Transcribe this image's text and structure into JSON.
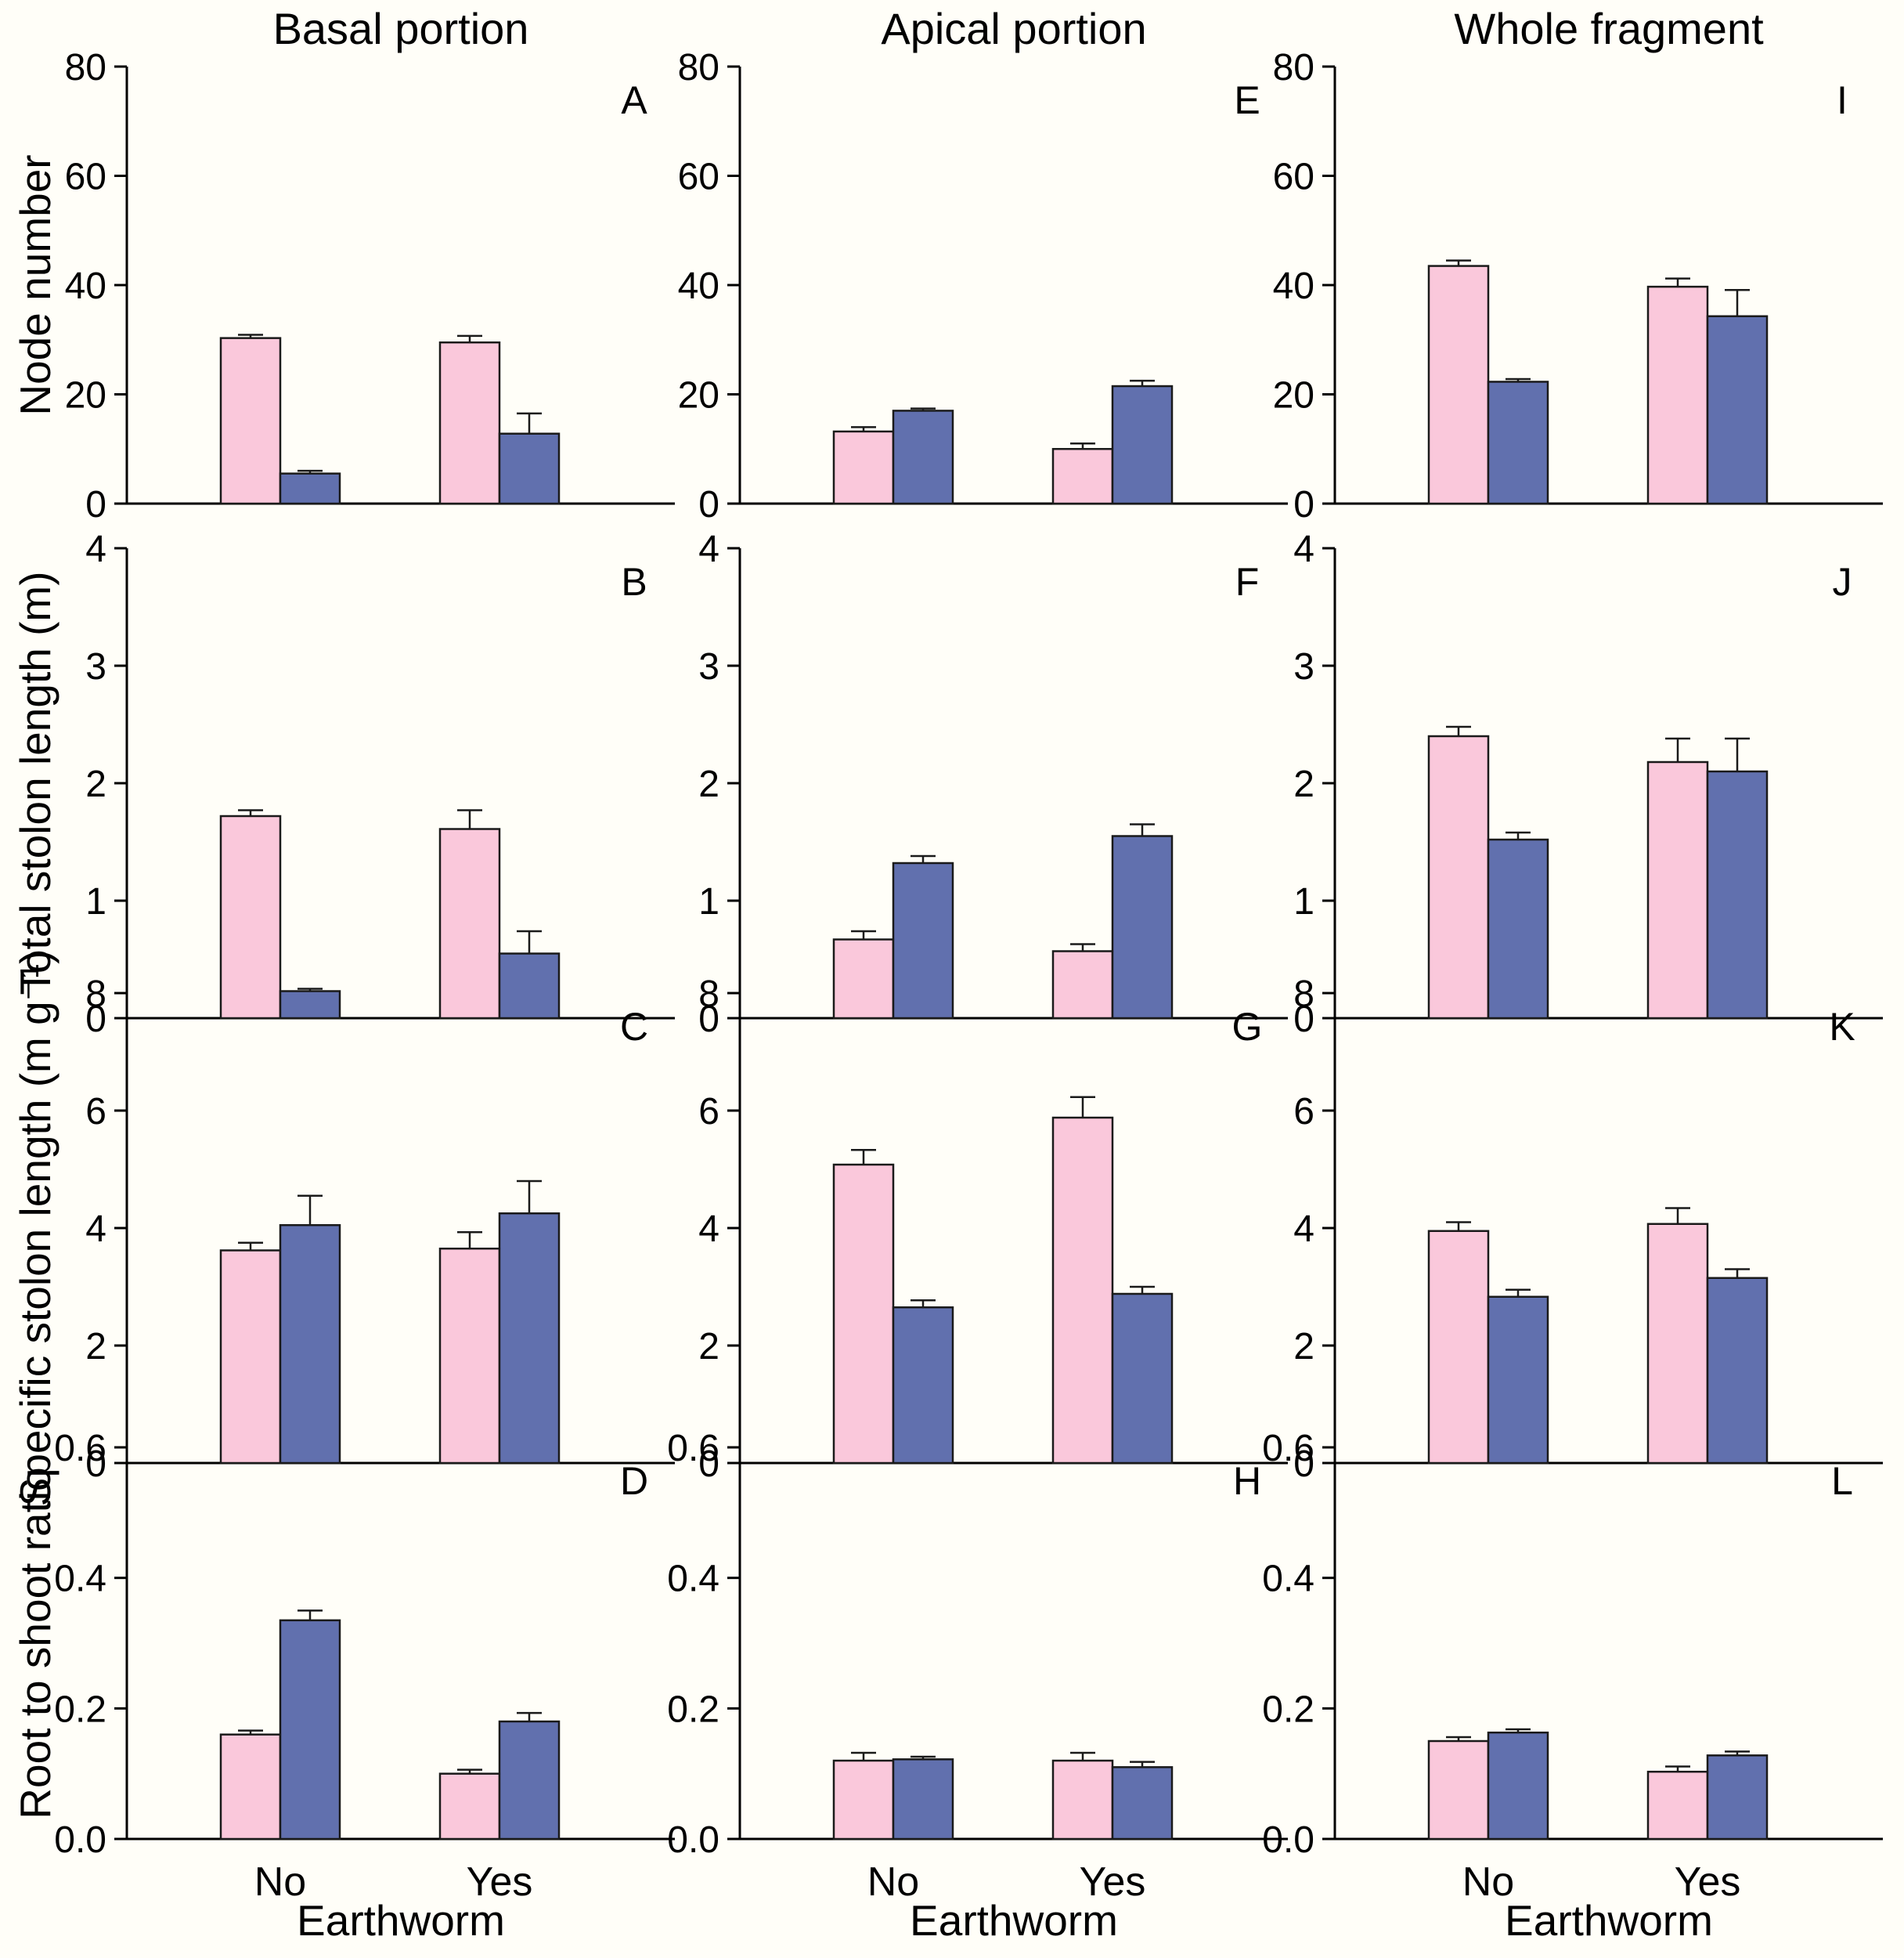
{
  "figure": {
    "background": "#fffef8",
    "column_titles": [
      "Basal portion",
      "Apical portion",
      "Whole fragment"
    ],
    "row_axis_titles": [
      "Node number",
      "Total stolon length (m)",
      "Specific stolon length (m g⁻¹)",
      "Root to shoot ratio"
    ],
    "x_axis_title": "Earthworm",
    "x_categories": [
      "No",
      "Yes"
    ],
    "series": [
      {
        "name": "pink",
        "color": "#FAC8DB"
      },
      {
        "name": "blue",
        "color": "#6170AE"
      }
    ],
    "axis_color": "#000000",
    "bar_outline_color": "#1a1a1a"
  },
  "chart_data": [
    {
      "type": "bar",
      "label": "A",
      "grid": {
        "row": 0,
        "col": 0
      },
      "column": "Basal portion",
      "ylabel": "Node number",
      "ylim": [
        0,
        80
      ],
      "yticks": [
        "0",
        "20",
        "40",
        "60",
        "80"
      ],
      "categories": [
        "No",
        "Yes"
      ],
      "legend": false,
      "series": [
        {
          "name": "pink",
          "values": [
            30.3,
            29.5
          ],
          "errors": [
            0.6,
            1.2
          ]
        },
        {
          "name": "blue",
          "values": [
            5.5,
            12.8
          ],
          "errors": [
            0.5,
            3.7
          ]
        }
      ]
    },
    {
      "type": "bar",
      "label": "E",
      "grid": {
        "row": 0,
        "col": 1
      },
      "column": "Apical portion",
      "ylabel": "Node number",
      "ylim": [
        0,
        80
      ],
      "yticks": [
        "0",
        "20",
        "40",
        "60",
        "80"
      ],
      "categories": [
        "No",
        "Yes"
      ],
      "legend": false,
      "series": [
        {
          "name": "pink",
          "values": [
            13.2,
            10.0
          ],
          "errors": [
            0.8,
            1.0
          ]
        },
        {
          "name": "blue",
          "values": [
            17.0,
            21.5
          ],
          "errors": [
            0.4,
            1.0
          ]
        }
      ]
    },
    {
      "type": "bar",
      "label": "I",
      "grid": {
        "row": 0,
        "col": 2
      },
      "column": "Whole fragment",
      "ylabel": "Node number",
      "ylim": [
        0,
        80
      ],
      "yticks": [
        "0",
        "20",
        "40",
        "60",
        "80"
      ],
      "categories": [
        "No",
        "Yes"
      ],
      "legend": false,
      "series": [
        {
          "name": "pink",
          "values": [
            43.5,
            39.7
          ],
          "errors": [
            1.0,
            1.5
          ]
        },
        {
          "name": "blue",
          "values": [
            22.3,
            34.3
          ],
          "errors": [
            0.5,
            4.8
          ]
        }
      ]
    },
    {
      "type": "bar",
      "label": "B",
      "grid": {
        "row": 1,
        "col": 0
      },
      "column": "Basal portion",
      "ylabel": "Total stolon length (m)",
      "ylim": [
        0,
        4
      ],
      "yticks": [
        "0",
        "1",
        "2",
        "3",
        "4"
      ],
      "categories": [
        "No",
        "Yes"
      ],
      "legend": false,
      "series": [
        {
          "name": "pink",
          "values": [
            1.72,
            1.61
          ],
          "errors": [
            0.05,
            0.16
          ]
        },
        {
          "name": "blue",
          "values": [
            0.23,
            0.55
          ],
          "errors": [
            0.02,
            0.19
          ]
        }
      ]
    },
    {
      "type": "bar",
      "label": "F",
      "grid": {
        "row": 1,
        "col": 1
      },
      "column": "Apical portion",
      "ylabel": "Total stolon length (m)",
      "ylim": [
        0,
        4
      ],
      "yticks": [
        "0",
        "1",
        "2",
        "3",
        "4"
      ],
      "categories": [
        "No",
        "Yes"
      ],
      "legend": false,
      "series": [
        {
          "name": "pink",
          "values": [
            0.67,
            0.57
          ],
          "errors": [
            0.07,
            0.06
          ]
        },
        {
          "name": "blue",
          "values": [
            1.32,
            1.55
          ],
          "errors": [
            0.06,
            0.1
          ]
        }
      ]
    },
    {
      "type": "bar",
      "label": "J",
      "grid": {
        "row": 1,
        "col": 2
      },
      "column": "Whole fragment",
      "ylabel": "Total stolon length (m)",
      "ylim": [
        0,
        4
      ],
      "yticks": [
        "0",
        "1",
        "2",
        "3",
        "4"
      ],
      "categories": [
        "No",
        "Yes"
      ],
      "legend": false,
      "series": [
        {
          "name": "pink",
          "values": [
            2.4,
            2.18
          ],
          "errors": [
            0.08,
            0.2
          ]
        },
        {
          "name": "blue",
          "values": [
            1.52,
            2.1
          ],
          "errors": [
            0.06,
            0.28
          ]
        }
      ]
    },
    {
      "type": "bar",
      "label": "C",
      "grid": {
        "row": 2,
        "col": 0
      },
      "column": "Basal portion",
      "ylabel": "Specific stolon length (m g⁻¹)",
      "ylim": [
        0,
        8
      ],
      "yticks": [
        "0",
        "2",
        "4",
        "6",
        "8"
      ],
      "categories": [
        "No",
        "Yes"
      ],
      "legend": false,
      "series": [
        {
          "name": "pink",
          "values": [
            3.62,
            3.65
          ],
          "errors": [
            0.13,
            0.28
          ]
        },
        {
          "name": "blue",
          "values": [
            4.05,
            4.25
          ],
          "errors": [
            0.5,
            0.55
          ]
        }
      ]
    },
    {
      "type": "bar",
      "label": "G",
      "grid": {
        "row": 2,
        "col": 1
      },
      "column": "Apical portion",
      "ylabel": "Specific stolon length (m g⁻¹)",
      "ylim": [
        0,
        8
      ],
      "yticks": [
        "0",
        "2",
        "4",
        "6",
        "8"
      ],
      "categories": [
        "No",
        "Yes"
      ],
      "legend": false,
      "series": [
        {
          "name": "pink",
          "values": [
            5.08,
            5.88
          ],
          "errors": [
            0.25,
            0.35
          ]
        },
        {
          "name": "blue",
          "values": [
            2.65,
            2.88
          ],
          "errors": [
            0.12,
            0.12
          ]
        }
      ]
    },
    {
      "type": "bar",
      "label": "K",
      "grid": {
        "row": 2,
        "col": 2
      },
      "column": "Whole fragment",
      "ylabel": "Specific stolon length (m g⁻¹)",
      "ylim": [
        0,
        8
      ],
      "yticks": [
        "0",
        "2",
        "4",
        "6",
        "8"
      ],
      "categories": [
        "No",
        "Yes"
      ],
      "legend": false,
      "series": [
        {
          "name": "pink",
          "values": [
            3.95,
            4.07
          ],
          "errors": [
            0.15,
            0.27
          ]
        },
        {
          "name": "blue",
          "values": [
            2.83,
            3.15
          ],
          "errors": [
            0.12,
            0.15
          ]
        }
      ]
    },
    {
      "type": "bar",
      "label": "D",
      "grid": {
        "row": 3,
        "col": 0
      },
      "column": "Basal portion",
      "ylabel": "Root to shoot ratio",
      "ylim": [
        0,
        0.6
      ],
      "yticks": [
        "0.0",
        "0.2",
        "0.4",
        "0.6"
      ],
      "categories": [
        "No",
        "Yes"
      ],
      "legend": false,
      "series": [
        {
          "name": "pink",
          "values": [
            0.16,
            0.1
          ],
          "errors": [
            0.006,
            0.006
          ]
        },
        {
          "name": "blue",
          "values": [
            0.335,
            0.18
          ],
          "errors": [
            0.015,
            0.013
          ]
        }
      ]
    },
    {
      "type": "bar",
      "label": "H",
      "grid": {
        "row": 3,
        "col": 1
      },
      "column": "Apical portion",
      "ylabel": "Root to shoot ratio",
      "ylim": [
        0,
        0.6
      ],
      "yticks": [
        "0.0",
        "0.2",
        "0.4",
        "0.6"
      ],
      "categories": [
        "No",
        "Yes"
      ],
      "legend": false,
      "series": [
        {
          "name": "pink",
          "values": [
            0.12,
            0.12
          ],
          "errors": [
            0.012,
            0.012
          ]
        },
        {
          "name": "blue",
          "values": [
            0.122,
            0.11
          ],
          "errors": [
            0.004,
            0.008
          ]
        }
      ]
    },
    {
      "type": "bar",
      "label": "L",
      "grid": {
        "row": 3,
        "col": 2
      },
      "column": "Whole fragment",
      "ylabel": "Root to shoot ratio",
      "ylim": [
        0,
        0.6
      ],
      "yticks": [
        "0.0",
        "0.2",
        "0.4",
        "0.6"
      ],
      "categories": [
        "No",
        "Yes"
      ],
      "legend": false,
      "series": [
        {
          "name": "pink",
          "values": [
            0.15,
            0.103
          ],
          "errors": [
            0.006,
            0.008
          ]
        },
        {
          "name": "blue",
          "values": [
            0.163,
            0.128
          ],
          "errors": [
            0.005,
            0.006
          ]
        }
      ]
    }
  ]
}
